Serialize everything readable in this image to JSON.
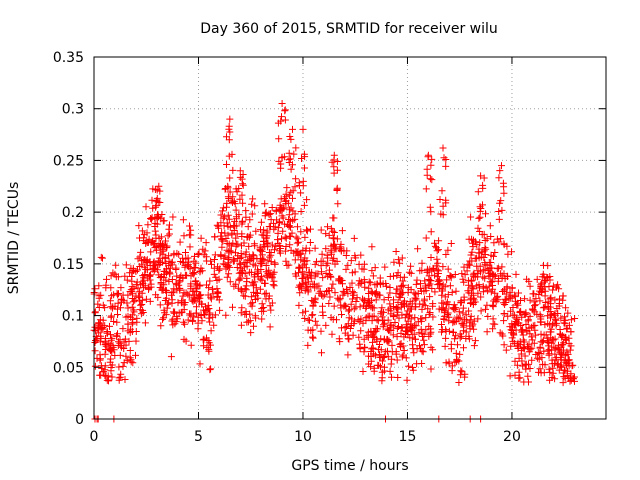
{
  "chart_data": {
    "type": "scatter",
    "title": "Day 360 of 2015, SRMTID for receiver wilu",
    "xlabel": "GPS time / hours",
    "ylabel": "SRMTID / TECUs",
    "xlim": [
      0,
      24.5
    ],
    "ylim": [
      0,
      0.35
    ],
    "x_ticks": [
      0,
      5,
      10,
      15,
      20
    ],
    "x_tick_labels": [
      "0",
      "5",
      "10",
      "15",
      "20"
    ],
    "y_ticks": [
      0,
      0.05,
      0.1,
      0.15,
      0.2,
      0.25,
      0.3,
      0.35
    ],
    "y_tick_labels": [
      "0",
      "0.05",
      "0.1",
      "0.15",
      "0.2",
      "0.25",
      "0.3",
      "0.35"
    ],
    "grid": true,
    "marker": "plus",
    "marker_color": "#ff0000",
    "series": [
      {
        "name": "SRMTID",
        "trend": [
          [
            0.0,
            0.09
          ],
          [
            0.5,
            0.08
          ],
          [
            1.0,
            0.075
          ],
          [
            1.5,
            0.085
          ],
          [
            2.0,
            0.12
          ],
          [
            2.5,
            0.15
          ],
          [
            3.0,
            0.165
          ],
          [
            3.5,
            0.14
          ],
          [
            4.0,
            0.12
          ],
          [
            4.5,
            0.14
          ],
          [
            5.0,
            0.12
          ],
          [
            5.5,
            0.1
          ],
          [
            6.0,
            0.15
          ],
          [
            6.5,
            0.185
          ],
          [
            7.0,
            0.15
          ],
          [
            7.5,
            0.14
          ],
          [
            8.0,
            0.15
          ],
          [
            8.5,
            0.15
          ],
          [
            9.0,
            0.2
          ],
          [
            9.5,
            0.19
          ],
          [
            10.0,
            0.14
          ],
          [
            10.5,
            0.12
          ],
          [
            11.0,
            0.12
          ],
          [
            11.5,
            0.16
          ],
          [
            12.0,
            0.12
          ],
          [
            12.5,
            0.11
          ],
          [
            13.0,
            0.1
          ],
          [
            13.5,
            0.09
          ],
          [
            14.0,
            0.09
          ],
          [
            14.5,
            0.1
          ],
          [
            15.0,
            0.1
          ],
          [
            15.5,
            0.1
          ],
          [
            16.0,
            0.12
          ],
          [
            16.5,
            0.14
          ],
          [
            17.0,
            0.1
          ],
          [
            17.5,
            0.09
          ],
          [
            18.0,
            0.12
          ],
          [
            18.5,
            0.15
          ],
          [
            19.0,
            0.13
          ],
          [
            19.5,
            0.13
          ],
          [
            20.0,
            0.1
          ],
          [
            20.5,
            0.07
          ],
          [
            21.0,
            0.08
          ],
          [
            21.5,
            0.09
          ],
          [
            22.0,
            0.08
          ],
          [
            22.5,
            0.07
          ],
          [
            23.0,
            0.05
          ]
        ],
        "spikes": [
          [
            1.0,
            0.14
          ],
          [
            3.1,
            0.225
          ],
          [
            6.5,
            0.29
          ],
          [
            7.0,
            0.24
          ],
          [
            9.0,
            0.305
          ],
          [
            9.5,
            0.28
          ],
          [
            10.0,
            0.28
          ],
          [
            11.5,
            0.255
          ],
          [
            16.0,
            0.255
          ],
          [
            16.7,
            0.262
          ],
          [
            18.5,
            0.235
          ],
          [
            19.5,
            0.245
          ],
          [
            21.5,
            0.14
          ]
        ],
        "zeros": [
          0.05,
          0.15,
          0.2,
          0.95,
          13.95,
          16.5,
          18.0,
          18.5
        ],
        "hour_range": [
          0.0,
          23.0
        ]
      }
    ]
  }
}
